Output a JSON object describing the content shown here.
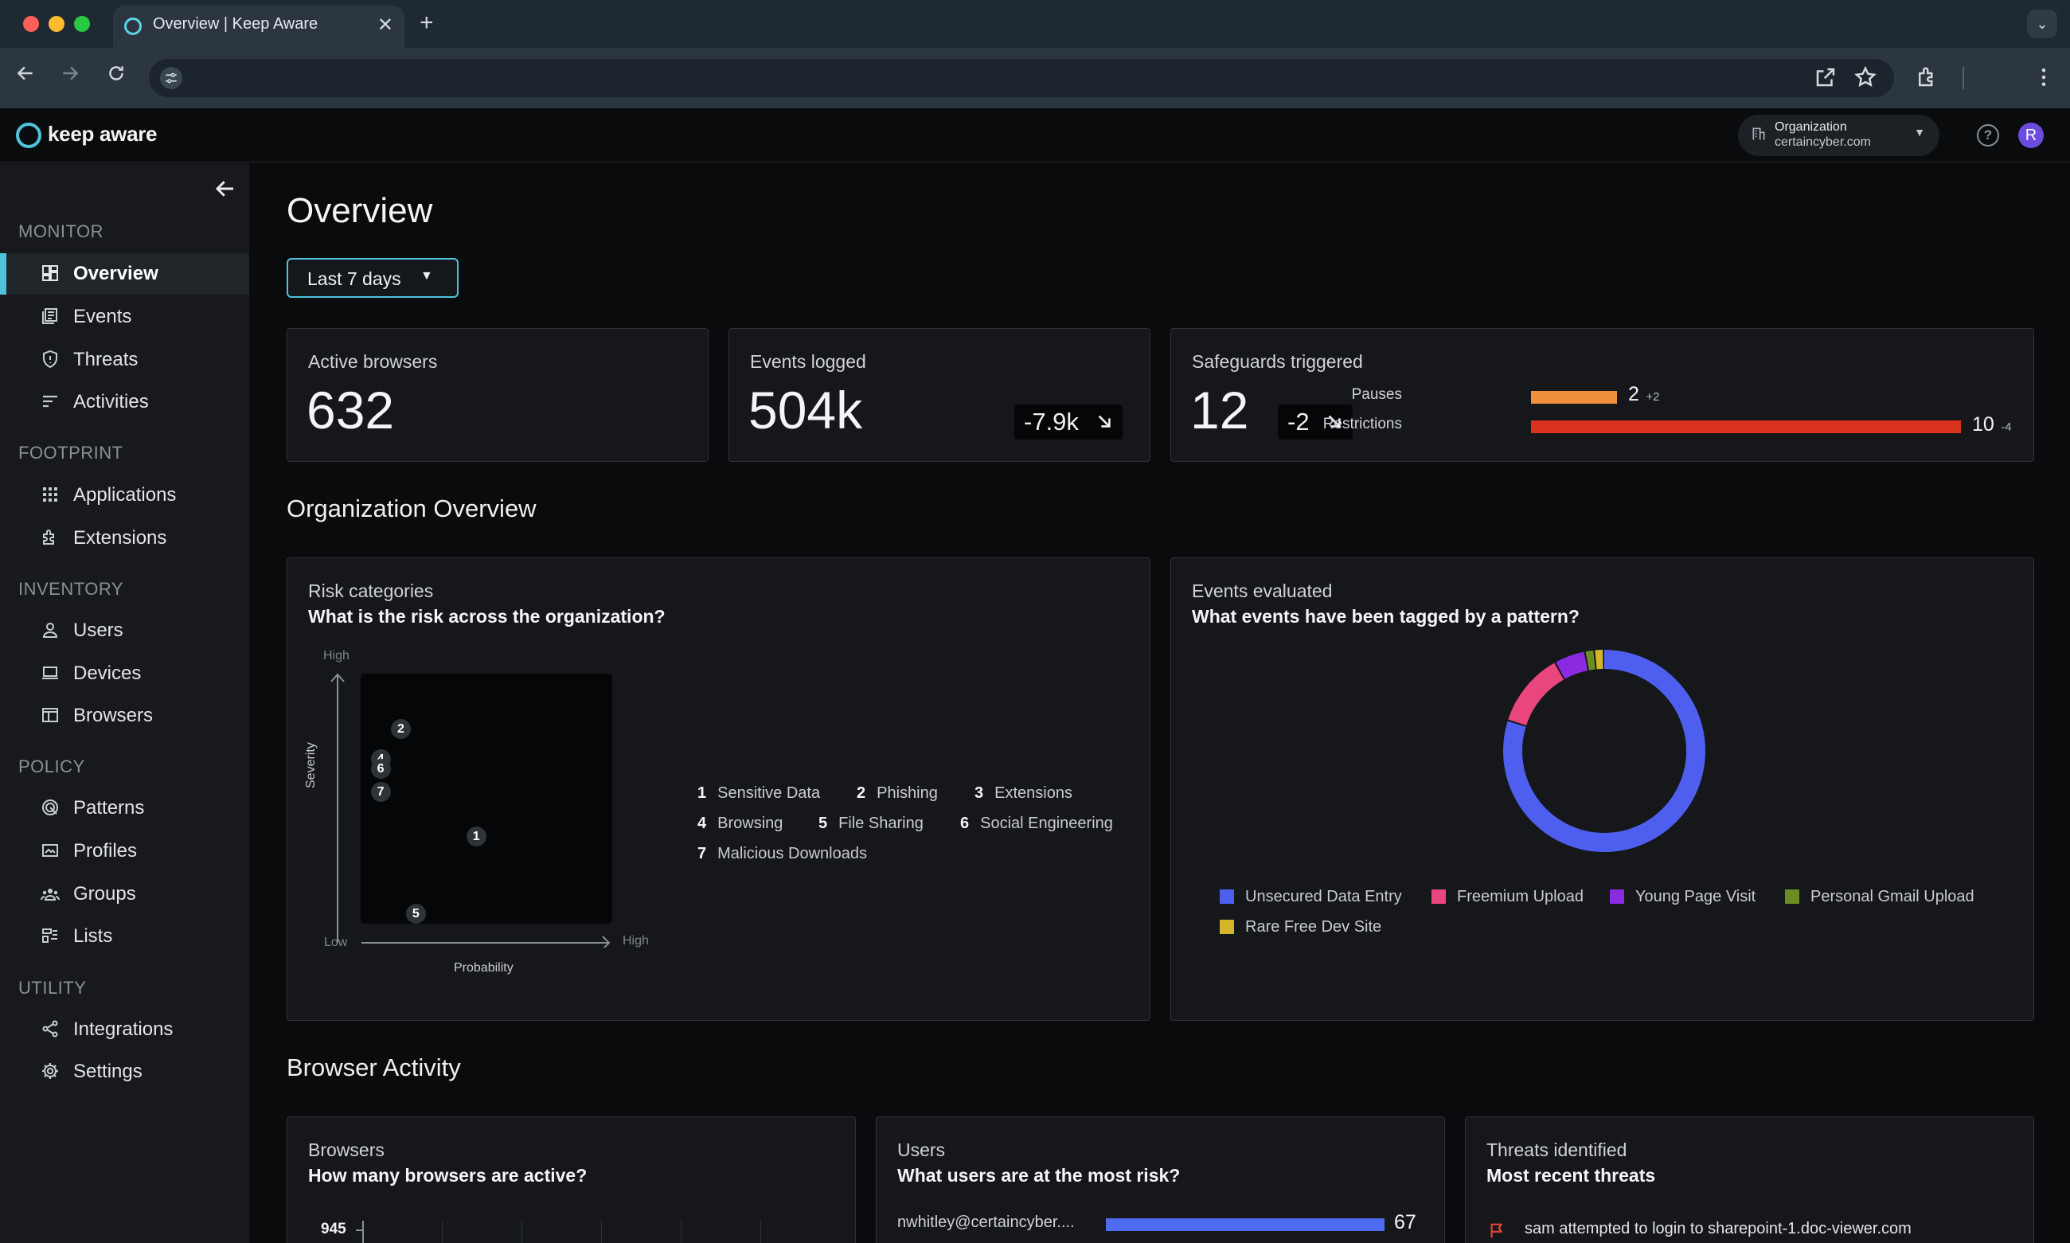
{
  "browser": {
    "tab_title": "Overview | Keep Aware",
    "close_glyph": "✕",
    "newtab_glyph": "+",
    "tabmenu_glyph": "⌄"
  },
  "app": {
    "brand": "keep aware",
    "org_label": "Organization",
    "org_value": "certaincyber.com",
    "avatar_letter": "R",
    "help_glyph": "?"
  },
  "sidebar": {
    "sections": {
      "monitor": "MONITOR",
      "footprint": "FOOTPRINT",
      "inventory": "INVENTORY",
      "policy": "POLICY",
      "utility": "UTILITY"
    },
    "items": [
      {
        "label": "Overview",
        "icon": "dashboard-icon"
      },
      {
        "label": "Events",
        "icon": "events-icon"
      },
      {
        "label": "Threats",
        "icon": "shield-icon"
      },
      {
        "label": "Activities",
        "icon": "activities-icon"
      },
      {
        "label": "Applications",
        "icon": "grid-icon"
      },
      {
        "label": "Extensions",
        "icon": "puzzle-icon"
      },
      {
        "label": "Users",
        "icon": "user-icon"
      },
      {
        "label": "Devices",
        "icon": "laptop-icon"
      },
      {
        "label": "Browsers",
        "icon": "browser-icon"
      },
      {
        "label": "Patterns",
        "icon": "patterns-icon"
      },
      {
        "label": "Profiles",
        "icon": "profiles-icon"
      },
      {
        "label": "Groups",
        "icon": "groups-icon"
      },
      {
        "label": "Lists",
        "icon": "lists-icon"
      },
      {
        "label": "Integrations",
        "icon": "share-icon"
      },
      {
        "label": "Settings",
        "icon": "gear-icon"
      }
    ]
  },
  "main": {
    "title": "Overview",
    "range": "Last 7 days",
    "stats": {
      "active_browsers": {
        "label": "Active browsers",
        "value": "632"
      },
      "events_logged": {
        "label": "Events logged",
        "value": "504k",
        "delta": "-7.9k"
      },
      "safeguards": {
        "label": "Safeguards triggered",
        "value": "12",
        "delta": "-2",
        "pauses_label": "Pauses",
        "pauses_value": "2",
        "pauses_delta": "+2",
        "restrictions_label": "Restrictions",
        "restrictions_value": "10",
        "restrictions_delta": "-4"
      }
    },
    "org_overview": "Organization Overview",
    "risk": {
      "title": "Risk categories",
      "question": "What is the risk across the organization?",
      "y_high": "High",
      "y_low": "Low",
      "y_label": "Severity",
      "x_high": "High",
      "x_label": "Probability",
      "legend": [
        {
          "n": "1",
          "name": "Sensitive Data"
        },
        {
          "n": "2",
          "name": "Phishing"
        },
        {
          "n": "3",
          "name": "Extensions"
        },
        {
          "n": "4",
          "name": "Browsing"
        },
        {
          "n": "5",
          "name": "File Sharing"
        },
        {
          "n": "6",
          "name": "Social Engineering"
        },
        {
          "n": "7",
          "name": "Malicious Downloads"
        }
      ]
    },
    "events_eval": {
      "title": "Events evaluated",
      "question": "What events have been tagged by a pattern?"
    },
    "browser_activity": "Browser Activity",
    "browsers_card": {
      "title": "Browsers",
      "question": "How many browsers are active?",
      "tick": "945"
    },
    "users_card": {
      "title": "Users",
      "question": "What users are at the most risk?",
      "user": "nwhitley@certaincyber....",
      "value": "67"
    },
    "threats_card": {
      "title": "Threats identified",
      "question": "Most recent threats",
      "item": "sam attempted to login to sharepoint-1.doc-viewer.com"
    }
  },
  "colors": {
    "accent": "#4fc3dc",
    "pauses": "#f0903a",
    "restrictions": "#d9321f",
    "users_bar": "#4e6af0"
  },
  "chart_data": [
    {
      "type": "scatter",
      "title": "Risk categories",
      "xlabel": "Probability",
      "ylabel": "Severity",
      "points": [
        {
          "label": "1",
          "x": 0.42,
          "y": 0.35
        },
        {
          "label": "2",
          "x": 0.12,
          "y": 0.78
        },
        {
          "label": "4",
          "x": 0.04,
          "y": 0.66
        },
        {
          "label": "6",
          "x": 0.04,
          "y": 0.62
        },
        {
          "label": "7",
          "x": 0.04,
          "y": 0.53
        },
        {
          "label": "5",
          "x": 0.18,
          "y": 0.04
        }
      ]
    },
    {
      "type": "pie",
      "title": "Events evaluated",
      "series": [
        {
          "name": "Unsecured Data Entry",
          "value": 80,
          "color": "#4e5ff0"
        },
        {
          "name": "Freemium Upload",
          "value": 12,
          "color": "#e8467c"
        },
        {
          "name": "Young Page Visit",
          "value": 5,
          "color": "#8a2be2"
        },
        {
          "name": "Personal Gmail Upload",
          "value": 1.5,
          "color": "#6b8e23"
        },
        {
          "name": "Rare Free Dev Site",
          "value": 1.5,
          "color": "#d4b52a"
        }
      ]
    },
    {
      "type": "bar",
      "title": "Safeguards triggered",
      "categories": [
        "Pauses",
        "Restrictions"
      ],
      "values": [
        2,
        10
      ]
    }
  ]
}
